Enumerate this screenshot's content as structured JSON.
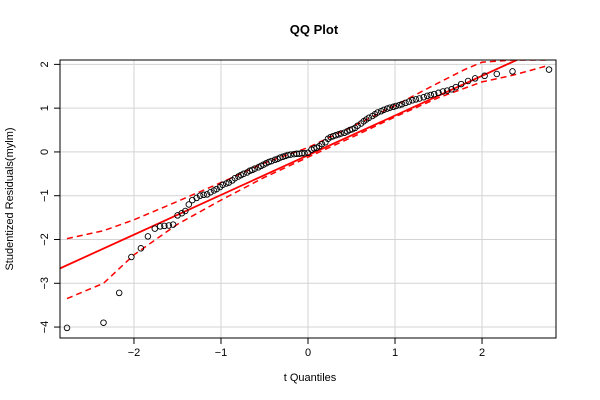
{
  "chart_data": {
    "type": "scatter",
    "title": "QQ Plot",
    "xlabel": "t Quantiles",
    "ylabel": "Studentized Residuals(mylm)",
    "xlim": [
      -2.85,
      2.85
    ],
    "ylim": [
      -4.25,
      2.1
    ],
    "xticks": [
      -2,
      -1,
      0,
      1,
      2
    ],
    "xtick_labels": [
      "−2",
      "−1",
      "0",
      "1",
      "2"
    ],
    "yticks": [
      -4,
      -3,
      -2,
      -1,
      0,
      1,
      2
    ],
    "ytick_labels": [
      "−4",
      "−3",
      "−2",
      "−1",
      "0",
      "1",
      "2"
    ],
    "grid": true,
    "colors": {
      "points": "#000000",
      "reference_line": "#ff0000",
      "envelope": "#ff0000",
      "grid": "#d3d3d3"
    },
    "series": [
      {
        "kind": "points",
        "x": [
          -2.77,
          -2.35,
          -2.17,
          -2.03,
          -1.92,
          -1.84,
          -1.76,
          -1.7,
          -1.65,
          -1.6,
          -1.55,
          -1.5,
          -1.45,
          -1.41,
          -1.37,
          -1.33,
          -1.28,
          -1.24,
          -1.2,
          -1.16,
          -1.12,
          -1.08,
          -1.05,
          -1.01,
          -0.98,
          -0.94,
          -0.91,
          -0.87,
          -0.84,
          -0.8,
          -0.77,
          -0.74,
          -0.7,
          -0.67,
          -0.64,
          -0.61,
          -0.57,
          -0.54,
          -0.51,
          -0.48,
          -0.45,
          -0.42,
          -0.38,
          -0.35,
          -0.32,
          -0.29,
          -0.26,
          -0.23,
          -0.2,
          -0.16,
          -0.13,
          -0.1,
          -0.07,
          -0.04,
          0.0,
          0.04,
          0.07,
          0.1,
          0.13,
          0.16,
          0.2,
          0.23,
          0.26,
          0.29,
          0.32,
          0.35,
          0.38,
          0.42,
          0.45,
          0.48,
          0.51,
          0.54,
          0.57,
          0.61,
          0.64,
          0.67,
          0.7,
          0.74,
          0.77,
          0.8,
          0.84,
          0.87,
          0.91,
          0.94,
          0.98,
          1.01,
          1.05,
          1.08,
          1.12,
          1.16,
          1.2,
          1.24,
          1.28,
          1.33,
          1.37,
          1.41,
          1.45,
          1.5,
          1.55,
          1.6,
          1.65,
          1.7,
          1.76,
          1.84,
          1.92,
          2.03,
          2.17,
          2.35,
          2.77
        ],
        "y": [
          -4.02,
          -3.9,
          -3.22,
          -2.4,
          -2.2,
          -1.93,
          -1.75,
          -1.7,
          -1.69,
          -1.68,
          -1.66,
          -1.45,
          -1.4,
          -1.35,
          -1.2,
          -1.1,
          -1.05,
          -1.0,
          -0.98,
          -0.97,
          -0.92,
          -0.88,
          -0.85,
          -0.8,
          -0.75,
          -0.72,
          -0.7,
          -0.65,
          -0.6,
          -0.56,
          -0.53,
          -0.5,
          -0.47,
          -0.43,
          -0.41,
          -0.38,
          -0.35,
          -0.32,
          -0.29,
          -0.26,
          -0.23,
          -0.21,
          -0.18,
          -0.16,
          -0.13,
          -0.11,
          -0.09,
          -0.07,
          -0.06,
          -0.05,
          -0.04,
          -0.04,
          -0.03,
          -0.03,
          -0.02,
          0.05,
          0.08,
          0.1,
          0.13,
          0.18,
          0.22,
          0.3,
          0.34,
          0.36,
          0.38,
          0.4,
          0.42,
          0.44,
          0.47,
          0.5,
          0.52,
          0.55,
          0.6,
          0.65,
          0.7,
          0.74,
          0.78,
          0.82,
          0.86,
          0.9,
          0.93,
          0.96,
          0.99,
          1.01,
          1.03,
          1.05,
          1.07,
          1.09,
          1.12,
          1.15,
          1.18,
          1.2,
          1.22,
          1.25,
          1.28,
          1.3,
          1.32,
          1.35,
          1.38,
          1.4,
          1.43,
          1.48,
          1.55,
          1.62,
          1.68,
          1.74,
          1.78,
          1.84,
          1.88
        ]
      },
      {
        "kind": "reference_line",
        "x": [
          -2.85,
          2.85
        ],
        "y": [
          -2.66,
          2.51
        ]
      },
      {
        "kind": "upper_envelope",
        "x": [
          -2.77,
          -2.35,
          -2.0,
          -1.5,
          -1.0,
          -0.5,
          0.0,
          0.5,
          1.0,
          1.5,
          1.8,
          2.0,
          2.35,
          2.77
        ],
        "y": [
          -1.98,
          -1.8,
          -1.55,
          -1.13,
          -0.7,
          -0.25,
          0.1,
          0.57,
          1.06,
          1.58,
          1.88,
          2.05,
          2.1,
          2.1
        ]
      },
      {
        "kind": "lower_envelope",
        "x": [
          -2.77,
          -2.35,
          -2.0,
          -1.5,
          -1.0,
          -0.5,
          0.0,
          0.5,
          1.0,
          1.5,
          2.0,
          2.35,
          2.77
        ],
        "y": [
          -3.35,
          -3.0,
          -2.35,
          -1.65,
          -1.1,
          -0.58,
          -0.12,
          0.33,
          0.8,
          1.24,
          1.6,
          1.75,
          1.98
        ]
      }
    ]
  }
}
